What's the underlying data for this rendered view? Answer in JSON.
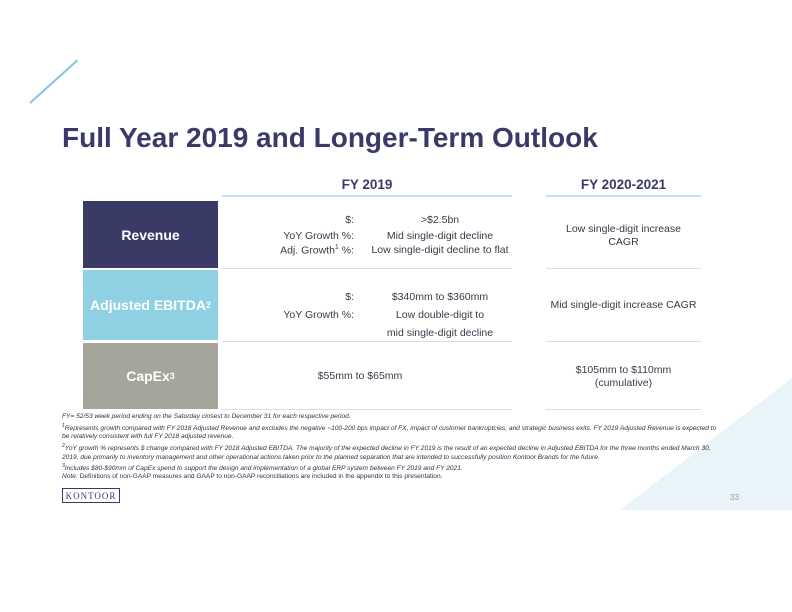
{
  "title": "Full Year 2019 and Longer-Term Outlook",
  "columns": {
    "fy2019": "FY 2019",
    "fy2020": "FY 2020-2021"
  },
  "rows": {
    "revenue": {
      "label": "Revenue",
      "color": "#3a3a66",
      "fy2019": [
        {
          "key": "$:",
          "value": ">$2.5bn"
        },
        {
          "key": "YoY Growth %:",
          "value": "Mid single-digit decline"
        },
        {
          "key_prefix": "Adj. Growth",
          "key_sup": "1",
          "key_suffix": " %:",
          "value": "Low single-digit decline to flat"
        }
      ],
      "fy2020_line1": "Low single-digit increase",
      "fy2020_line2": "CAGR"
    },
    "ebitda": {
      "label": "Adjusted EBITDA",
      "label_sup": "2",
      "color": "#8fd1e3",
      "fy2019": [
        {
          "key": "$:",
          "value": "$340mm to $360mm"
        },
        {
          "key": "YoY Growth %:",
          "value": "Low double-digit to"
        },
        {
          "value": "mid single-digit decline"
        }
      ],
      "fy2020": "Mid single-digit increase CAGR"
    },
    "capex": {
      "label": "CapEx",
      "label_sup": "3",
      "color": "#a5a59c",
      "fy2019": "$55mm to $65mm",
      "fy2020_line1": "$105mm to $110mm",
      "fy2020_line2": "(cumulative)"
    }
  },
  "footnotes": {
    "fy_def": "FY= 52/53 week period ending on the Saturday closest to December 31 for each respective period.",
    "fn1": "Represents growth compared with FY 2018 Adjusted Revenue and excludes the negative ~100-200 bps impact of FX, impact of customer bankruptcies, and strategic business exits. FY 2019 Adjusted Revenue is expected to be relatively consistent with full FY 2018 adjusted revenue.",
    "fn2": "YoY growth % represents $ change compared with FY 2018 Adjusted EBITDA. The majority of the expected decline in FY 2019 is the result of an expected decline in Adjusted EBITDA for the three months ended March 30, 2019, due primarily to inventory management and other operational actions taken prior to the planned separation that are intended to successfully position Kontoor Brands for the future.",
    "fn3": "Includes $80-$90mm of CapEx spend to support the design and implementation of a global ERP system between FY 2019 and FY 2021.",
    "note_label": "Note:",
    "note_text": " Definitions of non-GAAP measures and GAAP to non-GAAP reconciliations are included in the appendix to this presentation."
  },
  "logo": "KONTOOR",
  "page_number": "33",
  "colors": {
    "title": "#3a3a6a",
    "accent_line": "#7fc7dc",
    "triangle": "#e8f4fa"
  }
}
